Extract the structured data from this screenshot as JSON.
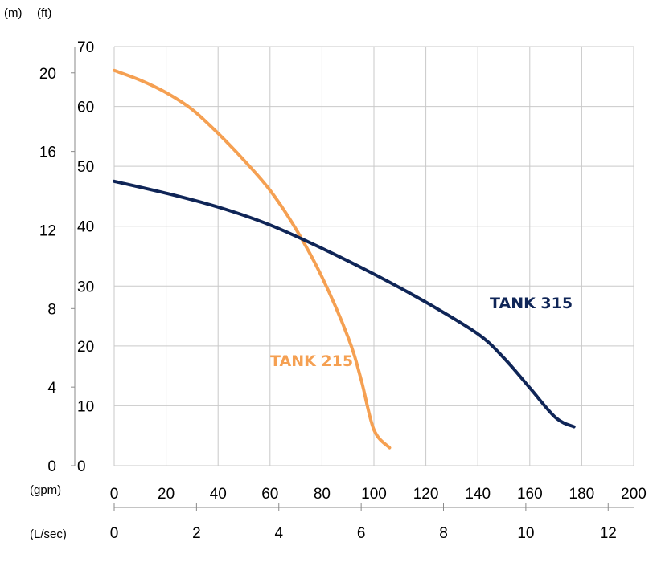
{
  "chart_data": {
    "type": "line",
    "title": "",
    "axes": {
      "head_m": {
        "unit_label": "(m)",
        "range": [
          0,
          21.34
        ],
        "ticks": [
          "0",
          "4",
          "8",
          "12",
          "16",
          "20"
        ]
      },
      "head_ft": {
        "unit_label": "(ft)",
        "range": [
          0,
          70
        ],
        "ticks": [
          "0",
          "10",
          "20",
          "30",
          "40",
          "50",
          "60",
          "70"
        ]
      },
      "flow_gpm": {
        "unit_label": "(gpm)",
        "range": [
          0,
          200
        ],
        "ticks": [
          "0",
          "20",
          "40",
          "60",
          "80",
          "100",
          "120",
          "140",
          "160",
          "180",
          "200"
        ]
      },
      "flow_lsec": {
        "unit_label": "(L/sec)",
        "range": [
          0,
          12.62
        ],
        "ticks": [
          "0",
          "2",
          "4",
          "6",
          "8",
          "10",
          "12"
        ]
      }
    },
    "grid": true,
    "series": [
      {
        "name": "TANK 215",
        "color": "#f5a052",
        "x_unit": "gpm",
        "y_unit": "ft",
        "x": [
          0,
          10,
          20,
          30,
          40,
          50,
          60,
          70,
          80,
          90,
          95,
          100,
          106
        ],
        "y": [
          66,
          64.4,
          62.3,
          59.5,
          55.5,
          51,
          46,
          39.5,
          31.5,
          21.5,
          14.5,
          6,
          3
        ]
      },
      {
        "name": "TANK 315",
        "color": "#0f2557",
        "x_unit": "gpm",
        "y_unit": "ft",
        "x": [
          0,
          20,
          40,
          60,
          80,
          100,
          120,
          140,
          150,
          160,
          170,
          177
        ],
        "y": [
          47.5,
          45.5,
          43.2,
          40.2,
          36.3,
          32,
          27.3,
          22,
          18,
          13,
          8,
          6.5
        ]
      }
    ],
    "series_labels": {
      "tank215": "TANK 215",
      "tank315": "TANK 315"
    }
  }
}
